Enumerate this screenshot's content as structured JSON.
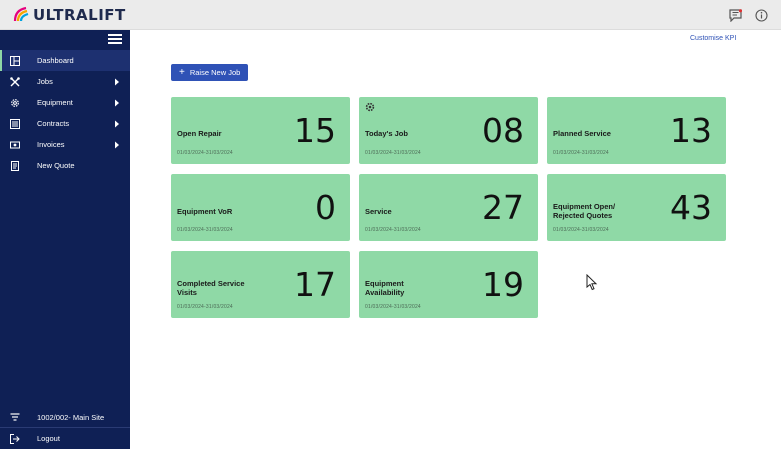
{
  "brand": {
    "name": "ULTRALIFT"
  },
  "topbar": {
    "icons": [
      "message-icon",
      "info-icon"
    ]
  },
  "sidebar": {
    "items": [
      {
        "label": "Dashboard",
        "icon": "dashboard-icon",
        "active": true,
        "has_submenu": false
      },
      {
        "label": "Jobs",
        "icon": "tools-icon",
        "has_submenu": true
      },
      {
        "label": "Equipment",
        "icon": "gear-icon",
        "has_submenu": true
      },
      {
        "label": "Contracts",
        "icon": "list-icon",
        "has_submenu": true
      },
      {
        "label": "Invoices",
        "icon": "money-icon",
        "has_submenu": true
      },
      {
        "label": "New Quote",
        "icon": "document-icon",
        "has_submenu": false
      }
    ],
    "site": {
      "label": "1002/002- Main Site",
      "icon": "filter-icon"
    },
    "logout": {
      "label": "Logout",
      "icon": "logout-icon"
    }
  },
  "header": {
    "customise_label": "Customise KPI"
  },
  "actions": {
    "raise_job_label": "Raise New Job"
  },
  "kpis": [
    {
      "label": "Open Repair",
      "value": "15",
      "date": "01/03/2024-31/03/2024"
    },
    {
      "label": "Today's Job",
      "value": "08",
      "date": "01/03/2024-31/03/2024",
      "icon": "gear-icon"
    },
    {
      "label": "Planned Service",
      "value": "13",
      "date": "01/03/2024-31/03/2024"
    },
    {
      "label": "Equipment VoR",
      "value": "0",
      "date": "01/03/2024-31/03/2024"
    },
    {
      "label": "Service",
      "value": "27",
      "date": "01/03/2024-31/03/2024"
    },
    {
      "label": "Equipment Open/ Rejected Quotes",
      "value": "43",
      "date": "01/03/2024-31/03/2024"
    },
    {
      "label": "Completed Service Visits",
      "value": "17",
      "date": "01/03/2024-31/03/2024"
    },
    {
      "label": "Equipment Availability",
      "value": "19",
      "date": "01/03/2024-31/03/2024"
    }
  ],
  "colors": {
    "sidebar": "#0f2055",
    "card": "#8fd9a6",
    "accent": "#2f52b6"
  }
}
